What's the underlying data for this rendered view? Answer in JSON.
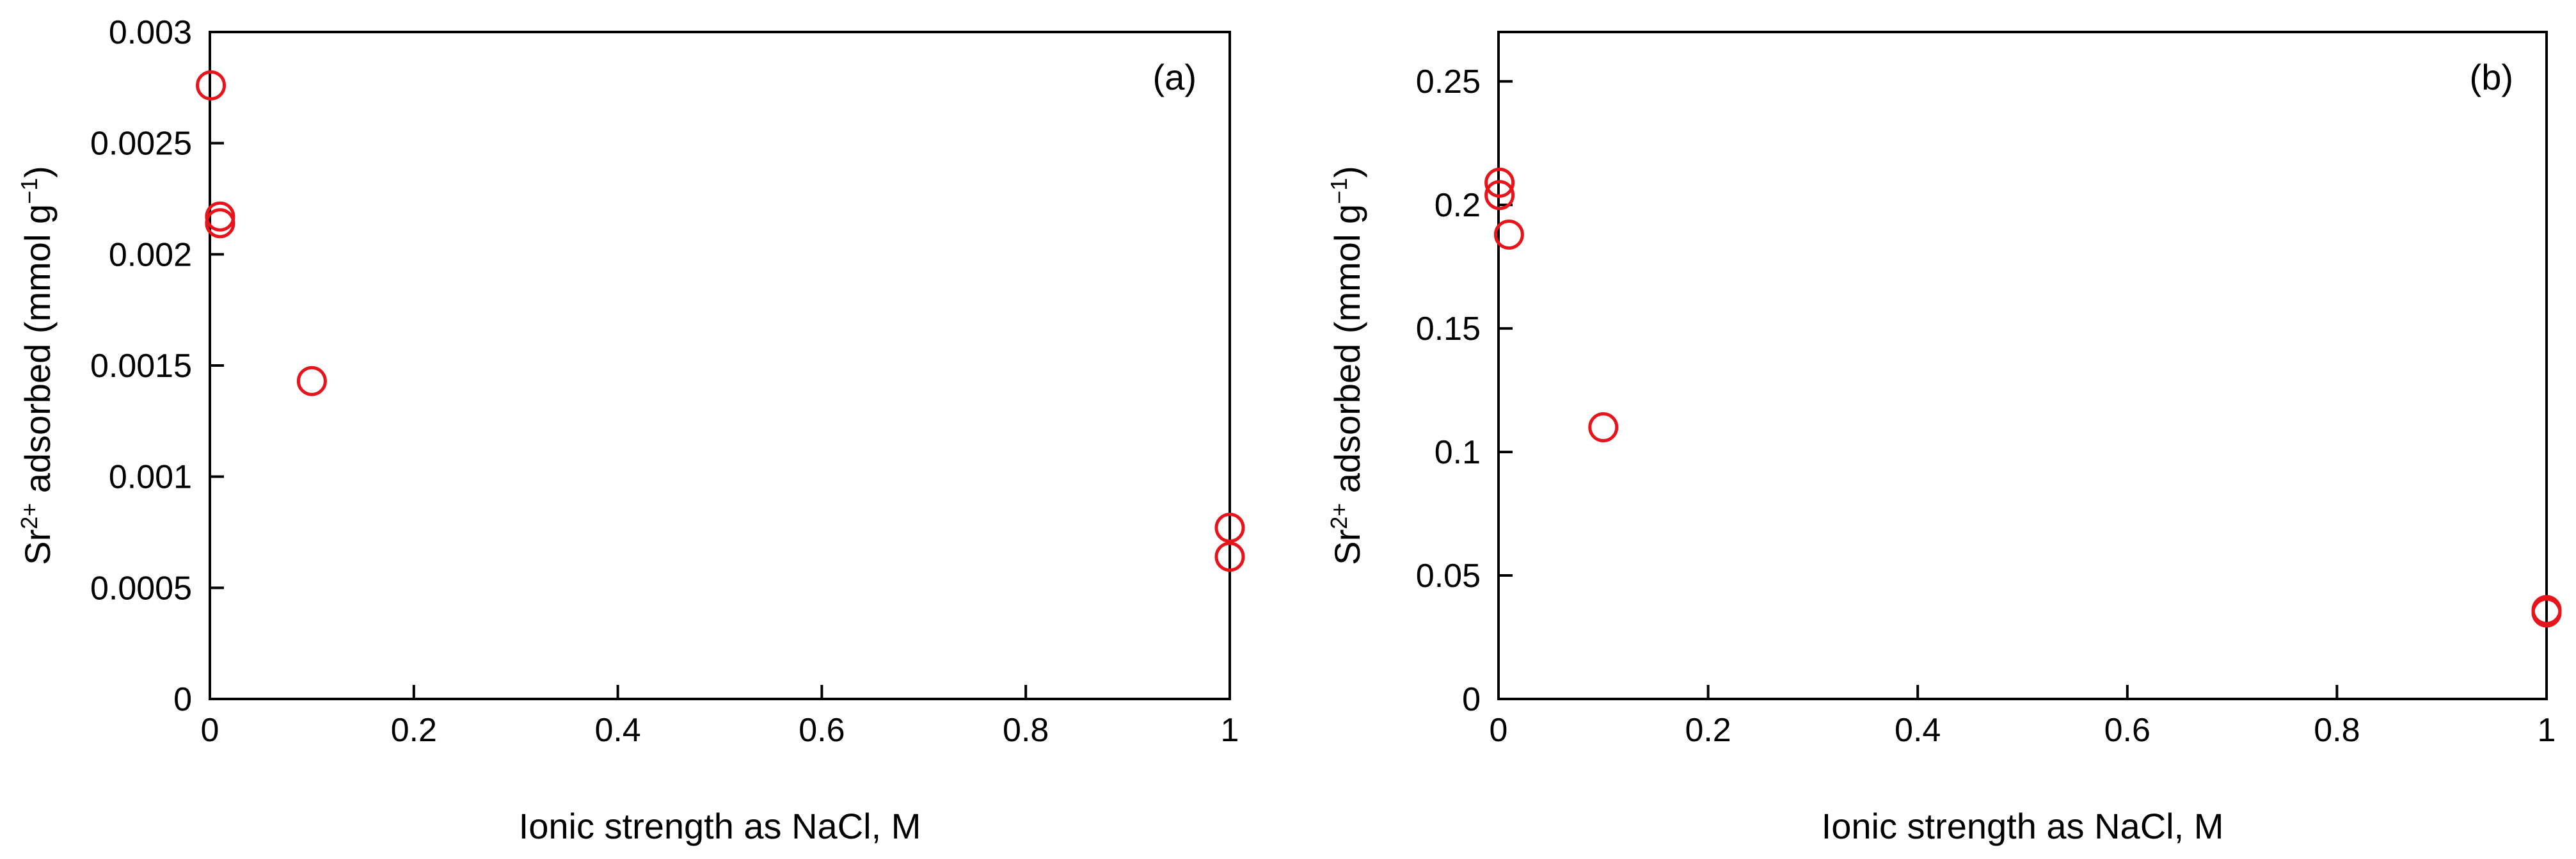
{
  "chart_data": [
    {
      "type": "scatter",
      "panel_label": "(a)",
      "xlabel": "Ionic strength as NaCl, M",
      "ylabel": {
        "base": "Sr",
        "base_sup": "2+",
        "rest": " adsorbed (mmol g",
        "rest_sup": "−1",
        "close": ")"
      },
      "xlim": [
        0,
        1
      ],
      "ylim": [
        0,
        0.003
      ],
      "xticks": [
        0,
        0.2,
        0.4,
        0.6,
        0.8,
        1
      ],
      "xtick_labels": [
        "0",
        "0.2",
        "0.4",
        "0.6",
        "0.8",
        "1"
      ],
      "yticks": [
        0,
        0.0005,
        0.001,
        0.0015,
        0.002,
        0.0025,
        0.003
      ],
      "ytick_labels": [
        "0",
        "0.0005",
        "0.001",
        "0.0015",
        "0.002",
        "0.0025",
        "0.003"
      ],
      "grid": false,
      "marker": "open-circle",
      "color": "#e8141b",
      "points": [
        {
          "x": 0.001,
          "y": 0.00276
        },
        {
          "x": 0.01,
          "y": 0.00217
        },
        {
          "x": 0.01,
          "y": 0.00214
        },
        {
          "x": 0.1,
          "y": 0.00143
        },
        {
          "x": 1,
          "y": 0.00077
        },
        {
          "x": 1,
          "y": 0.00064
        }
      ]
    },
    {
      "type": "scatter",
      "panel_label": "(b)",
      "xlabel": "Ionic strength as NaCl, M",
      "ylabel": {
        "base": "Sr",
        "base_sup": "2+",
        "rest": " adsorbed (mmol g",
        "rest_sup": "−1",
        "close": ")"
      },
      "xlim": [
        0,
        1
      ],
      "ylim": [
        0,
        0.27
      ],
      "xticks": [
        0,
        0.2,
        0.4,
        0.6,
        0.8,
        1
      ],
      "xtick_labels": [
        "0",
        "0.2",
        "0.4",
        "0.6",
        "0.8",
        "1"
      ],
      "yticks": [
        0,
        0.05,
        0.1,
        0.15,
        0.2,
        0.25
      ],
      "ytick_labels": [
        "0",
        "0.05",
        "0.1",
        "0.15",
        "0.2",
        "0.25"
      ],
      "grid": false,
      "marker": "open-circle",
      "color": "#e8141b",
      "points": [
        {
          "x": 0.001,
          "y": 0.209
        },
        {
          "x": 0.001,
          "y": 0.204
        },
        {
          "x": 0.01,
          "y": 0.188
        },
        {
          "x": 0.1,
          "y": 0.11
        },
        {
          "x": 1,
          "y": 0.036
        },
        {
          "x": 1,
          "y": 0.035
        }
      ]
    }
  ]
}
